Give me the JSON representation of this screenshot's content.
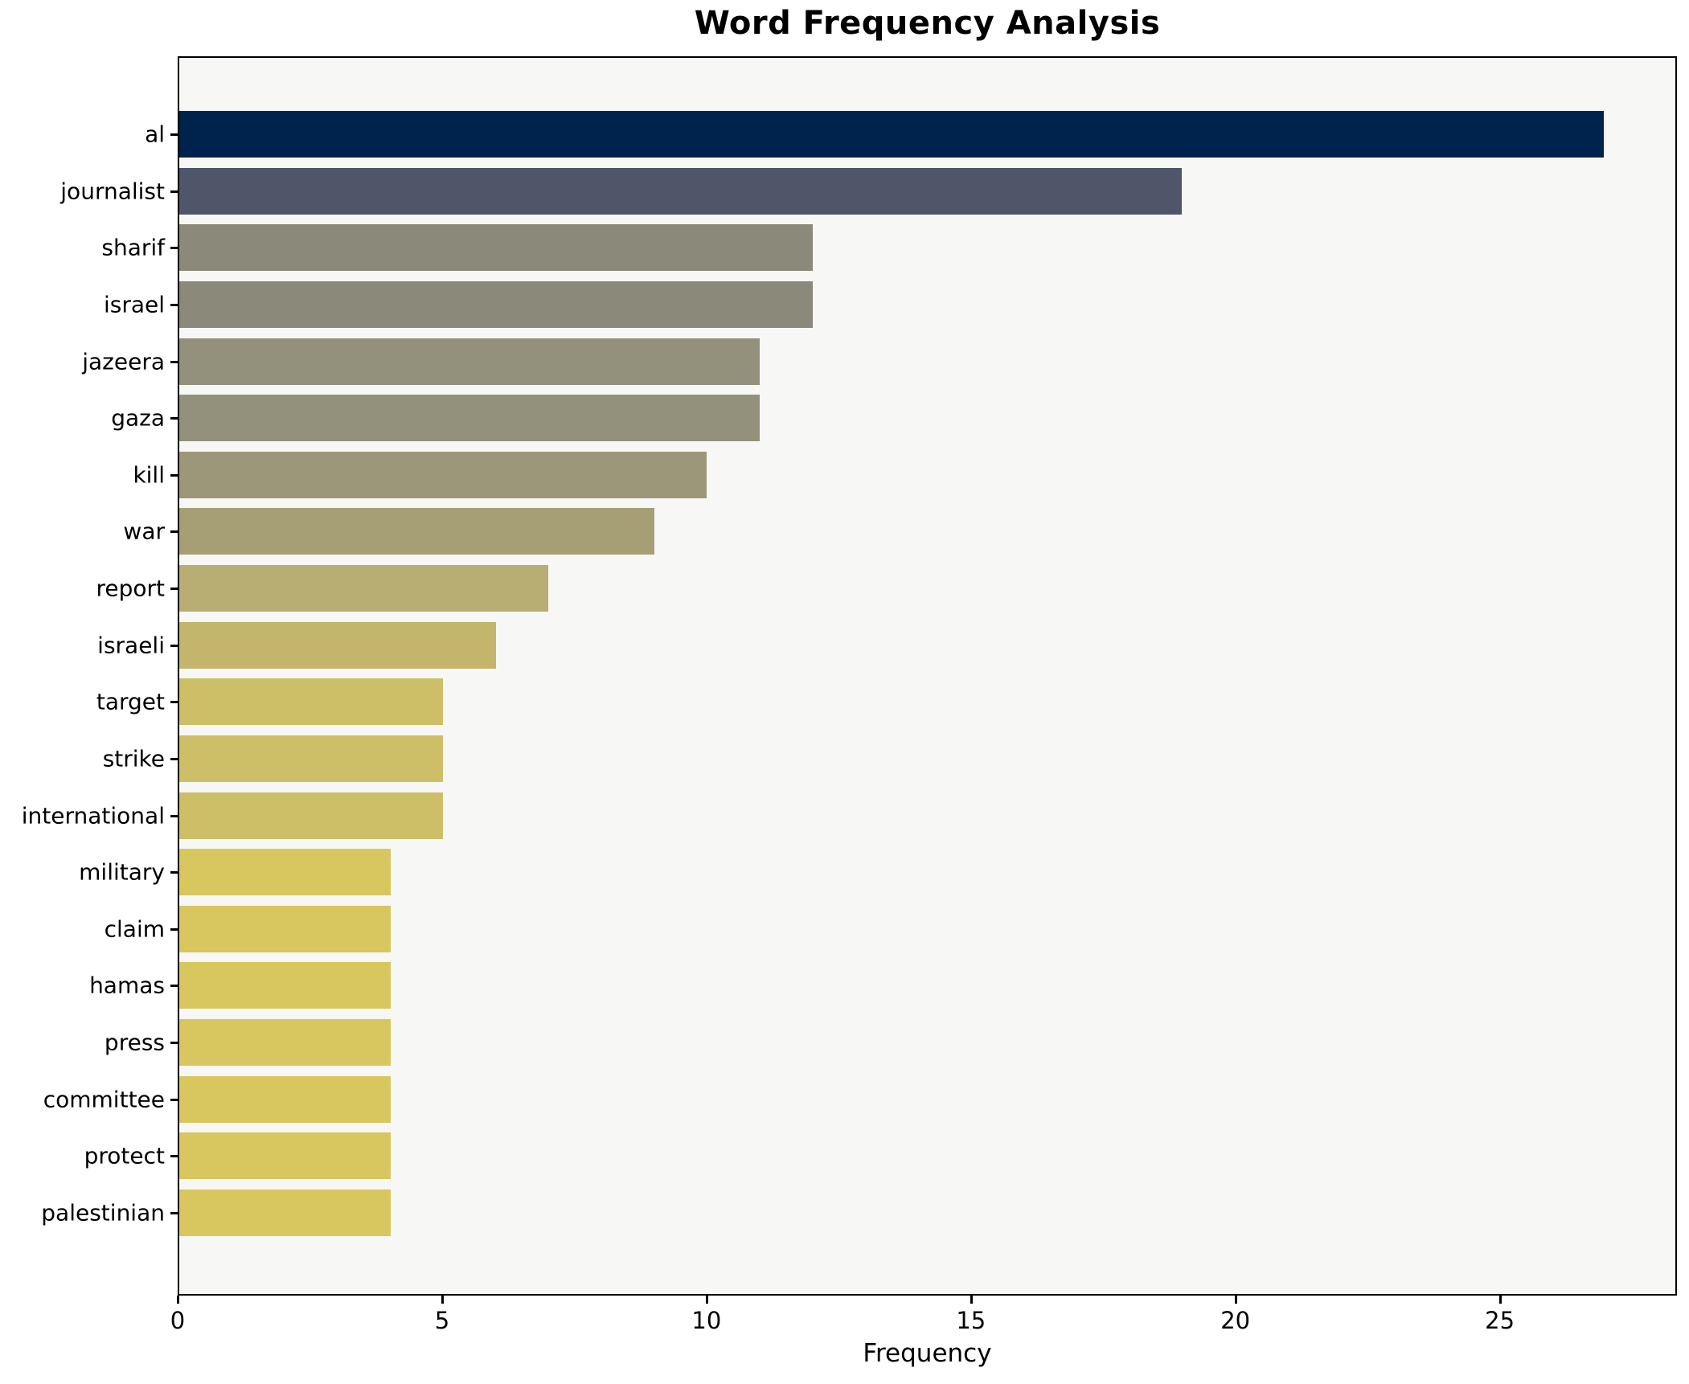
{
  "chart_data": {
    "type": "bar",
    "orientation": "horizontal",
    "title": "Word Frequency Analysis",
    "xlabel": "Frequency",
    "ylabel": "",
    "categories": [
      "al",
      "journalist",
      "sharif",
      "israel",
      "jazeera",
      "gaza",
      "kill",
      "war",
      "report",
      "israeli",
      "target",
      "strike",
      "international",
      "military",
      "claim",
      "hamas",
      "press",
      "committee",
      "protect",
      "palestinian"
    ],
    "values": [
      27,
      19,
      12,
      12,
      11,
      11,
      10,
      9,
      7,
      6,
      5,
      5,
      5,
      4,
      4,
      4,
      4,
      4,
      4,
      4
    ],
    "bar_colors": [
      "#00234d",
      "#4f5669",
      "#8b897a",
      "#8b897a",
      "#93907c",
      "#93907c",
      "#9c9779",
      "#a69e75",
      "#b8ad72",
      "#c3b56b",
      "#cdbf67",
      "#cdbf67",
      "#cdbf67",
      "#d8c65e",
      "#d8c65e",
      "#d8c65e",
      "#d8c65e",
      "#d8c65e",
      "#d8c65e",
      "#d8c65e"
    ],
    "xlim": [
      0,
      28.35
    ],
    "xticks": [
      "0",
      "5",
      "10",
      "15",
      "20",
      "25"
    ],
    "grid": false,
    "legend": null,
    "plot_background": "#f7f7f6",
    "axis_color": "#000000"
  }
}
